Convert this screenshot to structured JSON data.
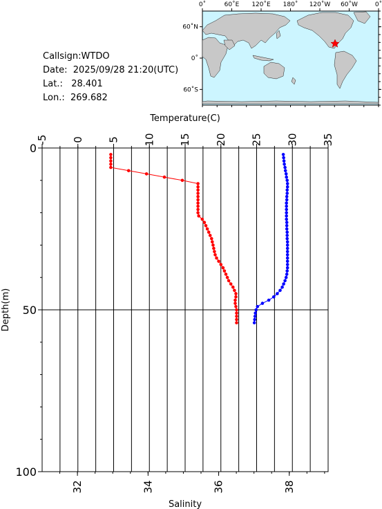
{
  "station": {
    "callsign_label": "Callsign:",
    "callsign": "WTDO",
    "date_label": "Date:",
    "date": "2025/09/28 21:20(UTC)",
    "lat_label": "Lat.:",
    "lat": "28.401",
    "lon_label": "Lon.:",
    "lon": "269.682"
  },
  "map": {
    "top_ticks": [
      "0˚",
      "60˚E",
      "120˚E",
      "180˚",
      "120˚W",
      "60˚W",
      "0˚"
    ],
    "left_ticks": [
      "60˚N",
      "0˚",
      "60˚S"
    ],
    "ocean_color": "#ccf5ff",
    "land_color": "#c8c8c8",
    "marker_color": "#ff0000"
  },
  "chart_data": {
    "type": "line",
    "x_top_label": "Temperature(C)",
    "x_bottom_label": "Salinity",
    "y_label": "Depth(m)",
    "temperature_ticks": [
      -5,
      0,
      5,
      10,
      15,
      20,
      25,
      30,
      35
    ],
    "temperature_range": [
      -5,
      35
    ],
    "salinity_ticks": [
      32,
      34,
      36,
      38
    ],
    "salinity_range": [
      31,
      39.1
    ],
    "depth_ticks": [
      0,
      50,
      100
    ],
    "depth_range": [
      0,
      100
    ],
    "grid": true,
    "series": [
      {
        "variable": "temperature",
        "color": "#ff0000",
        "points": [
          [
            4.6,
            2.0
          ],
          [
            4.6,
            3.0
          ],
          [
            4.6,
            4.0
          ],
          [
            4.6,
            5.0
          ],
          [
            4.6,
            6.0
          ],
          [
            7.1,
            7.0
          ],
          [
            9.6,
            8.0
          ],
          [
            12.1,
            9.0
          ],
          [
            14.6,
            10.0
          ],
          [
            16.8,
            11.0
          ],
          [
            16.8,
            12.0
          ],
          [
            16.8,
            13.0
          ],
          [
            16.8,
            14.0
          ],
          [
            16.8,
            15.0
          ],
          [
            16.8,
            16.0
          ],
          [
            16.8,
            17.0
          ],
          [
            16.8,
            18.0
          ],
          [
            16.8,
            19.0
          ],
          [
            16.8,
            20.0
          ],
          [
            16.9,
            21.0
          ],
          [
            17.4,
            22.0
          ],
          [
            17.7,
            23.0
          ],
          [
            17.9,
            24.0
          ],
          [
            18.1,
            25.0
          ],
          [
            18.3,
            26.0
          ],
          [
            18.5,
            27.0
          ],
          [
            18.7,
            28.0
          ],
          [
            18.8,
            29.0
          ],
          [
            18.9,
            30.0
          ],
          [
            19.0,
            31.0
          ],
          [
            19.1,
            32.0
          ],
          [
            19.2,
            33.0
          ],
          [
            19.4,
            34.0
          ],
          [
            19.7,
            35.0
          ],
          [
            20.0,
            36.0
          ],
          [
            20.3,
            37.0
          ],
          [
            20.5,
            38.0
          ],
          [
            20.7,
            39.0
          ],
          [
            20.9,
            40.0
          ],
          [
            21.1,
            41.0
          ],
          [
            21.4,
            42.0
          ],
          [
            21.7,
            43.0
          ],
          [
            21.9,
            44.0
          ],
          [
            22.1,
            45.0
          ],
          [
            22.1,
            46.0
          ],
          [
            22.0,
            47.0
          ],
          [
            22.0,
            48.0
          ],
          [
            22.1,
            49.0
          ],
          [
            22.2,
            50.0
          ],
          [
            22.2,
            51.0
          ],
          [
            22.2,
            52.0
          ],
          [
            22.2,
            53.0
          ],
          [
            22.2,
            54.0
          ]
        ]
      },
      {
        "variable": "salinity",
        "color": "#0000ff",
        "points": [
          [
            37.83,
            2.0
          ],
          [
            37.84,
            3.0
          ],
          [
            37.85,
            4.0
          ],
          [
            37.86,
            5.0
          ],
          [
            37.88,
            6.0
          ],
          [
            37.89,
            7.0
          ],
          [
            37.91,
            8.0
          ],
          [
            37.92,
            9.0
          ],
          [
            37.94,
            10.0
          ],
          [
            37.95,
            11.0
          ],
          [
            37.95,
            12.0
          ],
          [
            37.94,
            13.0
          ],
          [
            37.94,
            14.0
          ],
          [
            37.93,
            15.0
          ],
          [
            37.93,
            16.0
          ],
          [
            37.92,
            17.0
          ],
          [
            37.92,
            18.0
          ],
          [
            37.92,
            19.0
          ],
          [
            37.92,
            20.0
          ],
          [
            37.92,
            21.0
          ],
          [
            37.92,
            22.0
          ],
          [
            37.93,
            23.0
          ],
          [
            37.93,
            24.0
          ],
          [
            37.93,
            25.0
          ],
          [
            37.94,
            26.0
          ],
          [
            37.94,
            27.0
          ],
          [
            37.94,
            28.0
          ],
          [
            37.95,
            29.0
          ],
          [
            37.95,
            30.0
          ],
          [
            37.95,
            31.0
          ],
          [
            37.95,
            32.0
          ],
          [
            37.95,
            33.0
          ],
          [
            37.95,
            34.0
          ],
          [
            37.95,
            35.0
          ],
          [
            37.95,
            36.0
          ],
          [
            37.95,
            37.0
          ],
          [
            37.94,
            38.0
          ],
          [
            37.93,
            39.0
          ],
          [
            37.91,
            40.0
          ],
          [
            37.88,
            41.0
          ],
          [
            37.84,
            42.0
          ],
          [
            37.8,
            43.0
          ],
          [
            37.74,
            44.0
          ],
          [
            37.66,
            45.0
          ],
          [
            37.56,
            46.0
          ],
          [
            37.42,
            47.0
          ],
          [
            37.24,
            48.0
          ],
          [
            37.1,
            49.0
          ],
          [
            37.06,
            50.0
          ],
          [
            37.04,
            51.0
          ],
          [
            37.03,
            52.0
          ],
          [
            37.02,
            53.0
          ],
          [
            37.01,
            54.0
          ]
        ]
      }
    ]
  }
}
